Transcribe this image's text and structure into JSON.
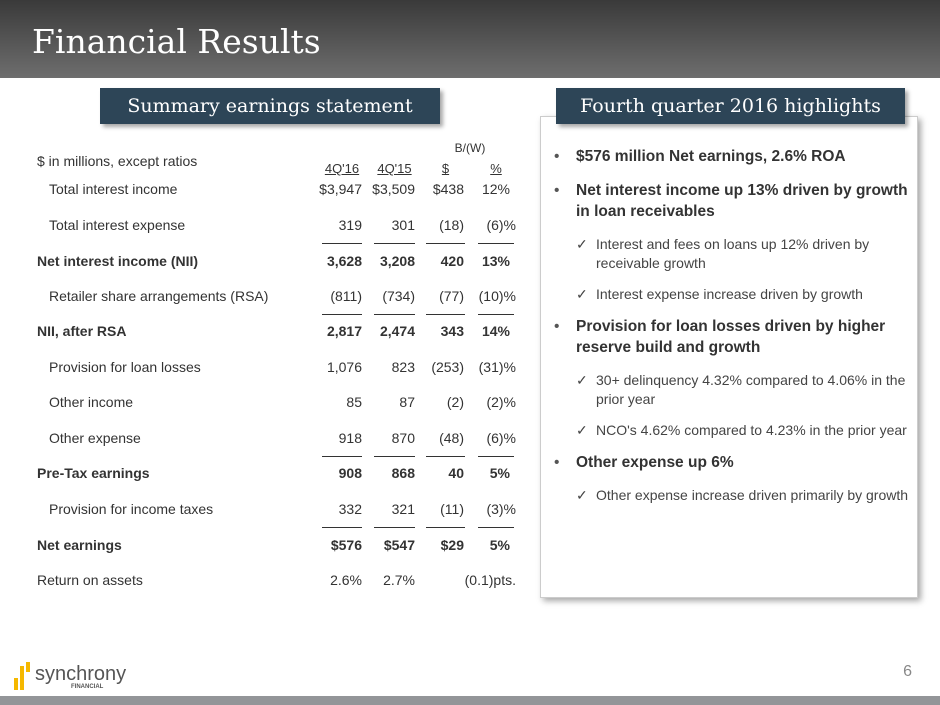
{
  "title": "Financial Results",
  "left_header": "Summary earnings statement",
  "right_header": "Fourth quarter 2016 highlights",
  "table": {
    "units": "$ in millions, except ratios",
    "group_header": "B/(W)",
    "columns": [
      "4Q'16",
      "4Q'15",
      "$",
      "%"
    ],
    "rows": [
      {
        "label": "Total interest income",
        "values": [
          "$3,947",
          "$3,509",
          "$438",
          "12%"
        ],
        "bold": false,
        "indent": true
      },
      {
        "label": "Total interest expense",
        "values": [
          "319",
          "301",
          "(18)",
          "(6)%"
        ],
        "bold": false,
        "indent": true
      },
      {
        "label": "Net interest income (NII)",
        "values": [
          "3,628",
          "3,208",
          "420",
          "13%"
        ],
        "bold": true,
        "indent": false
      },
      {
        "label": "Retailer share arrangements (RSA)",
        "values": [
          "(811)",
          "(734)",
          "(77)",
          "(10)%"
        ],
        "bold": false,
        "indent": true
      },
      {
        "label": "NII, after RSA",
        "values": [
          "2,817",
          "2,474",
          "343",
          "14%"
        ],
        "bold": true,
        "indent": false
      },
      {
        "label": "Provision for loan losses",
        "values": [
          "1,076",
          "823",
          "(253)",
          "(31)%"
        ],
        "bold": false,
        "indent": true
      },
      {
        "label": "Other income",
        "values": [
          "85",
          "87",
          "(2)",
          "(2)%"
        ],
        "bold": false,
        "indent": true
      },
      {
        "label": "Other expense",
        "values": [
          "918",
          "870",
          "(48)",
          "(6)%"
        ],
        "bold": false,
        "indent": true
      },
      {
        "label": "Pre-Tax earnings",
        "values": [
          "908",
          "868",
          "40",
          "5%"
        ],
        "bold": true,
        "indent": false
      },
      {
        "label": "Provision for income taxes",
        "values": [
          "332",
          "321",
          "(11)",
          "(3)%"
        ],
        "bold": false,
        "indent": true
      },
      {
        "label": "Net earnings",
        "values": [
          "$576",
          "$547",
          "$29",
          "5%"
        ],
        "bold": true,
        "indent": false
      },
      {
        "label": "Return on assets",
        "values": [
          "2.6%",
          "2.7%",
          "",
          "(0.1)pts."
        ],
        "bold": false,
        "indent": false
      }
    ]
  },
  "highlights": [
    {
      "text": "$576 million Net earnings, 2.6% ROA",
      "subs": []
    },
    {
      "text": "Net interest income up 13% driven by growth in loan receivables",
      "subs": [
        "Interest and fees on loans up 12% driven by receivable growth",
        "Interest expense increase driven by growth"
      ]
    },
    {
      "text": "Provision for loan losses driven by higher reserve build and growth",
      "subs": [
        "30+ delinquency 4.32% compared to 4.06% in the prior year",
        "NCO's 4.62% compared to 4.23% in the prior year"
      ]
    },
    {
      "text": "Other expense up 6%",
      "subs": [
        "Other expense increase driven primarily by growth"
      ]
    }
  ],
  "logo": {
    "name": "synchrony",
    "sub": "FINANCIAL"
  },
  "page_number": "6",
  "colors": {
    "header": "#2d4557",
    "logo_yellow": "#f5b800"
  }
}
